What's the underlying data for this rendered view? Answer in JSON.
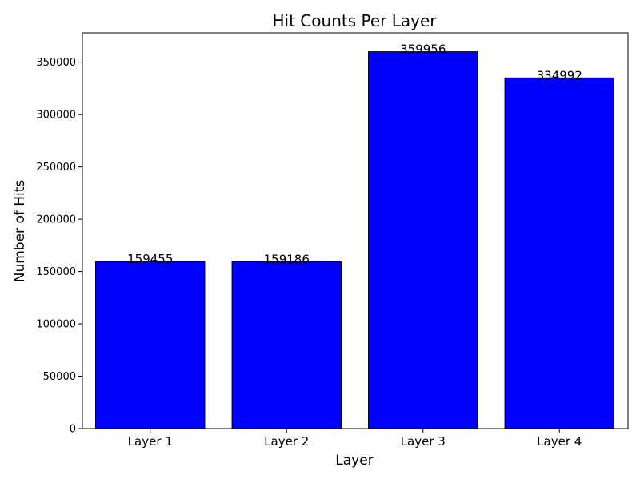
{
  "chart_data": {
    "type": "bar",
    "title": "Hit Counts Per Layer",
    "xlabel": "Layer",
    "ylabel": "Number of Hits",
    "categories": [
      "Layer 1",
      "Layer 2",
      "Layer 3",
      "Layer 4"
    ],
    "values": [
      159455,
      159186,
      359956,
      334992
    ],
    "data_labels": [
      "159455",
      "159186",
      "359956",
      "334992"
    ],
    "ylim": [
      0,
      378000
    ],
    "yticks": [
      0,
      50000,
      100000,
      150000,
      200000,
      250000,
      300000,
      350000
    ],
    "ytick_labels": [
      "0",
      "50000",
      "100000",
      "150000",
      "200000",
      "250000",
      "300000",
      "350000"
    ],
    "bar_color": "#0000ff",
    "bar_edge_color": "#000000",
    "grid": false,
    "legend": "none"
  }
}
